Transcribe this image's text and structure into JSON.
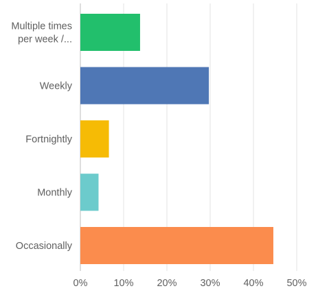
{
  "chart_data": {
    "type": "bar",
    "orientation": "horizontal",
    "categories": [
      "Multiple times per week /...",
      "Weekly",
      "Fortnightly",
      "Monthly",
      "Occasionally"
    ],
    "category_display_lines": [
      [
        "Multiple times",
        "per week /..."
      ],
      [
        "Weekly"
      ],
      [
        "Fortnightly"
      ],
      [
        "Monthly"
      ],
      [
        "Occasionally"
      ]
    ],
    "values": [
      13.8,
      29.7,
      6.6,
      4.2,
      44.6
    ],
    "colors": [
      "#22bf6c",
      "#4f77b5",
      "#f6bb05",
      "#6ccbcc",
      "#fb8c4d"
    ],
    "x_ticks": [
      "0%",
      "10%",
      "20%",
      "30%",
      "40%",
      "50%"
    ],
    "xlim": [
      0,
      50
    ],
    "grid": true,
    "title": "",
    "xlabel": "",
    "ylabel": ""
  }
}
